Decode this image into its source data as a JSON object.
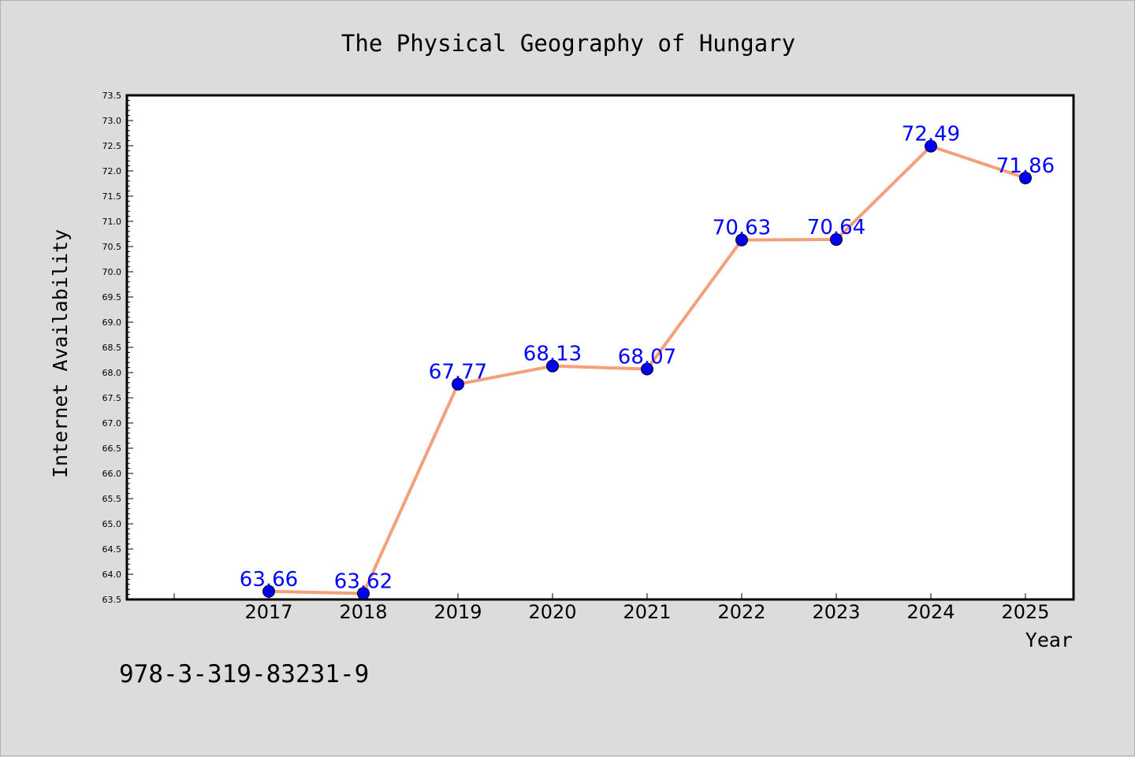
{
  "chart_data": {
    "type": "line",
    "title": "The Physical Geography of Hungary",
    "xlabel": "Year",
    "ylabel": "Internet Availability",
    "categories": [
      "2017",
      "2018",
      "2019",
      "2020",
      "2021",
      "2022",
      "2023",
      "2024",
      "2025"
    ],
    "values": [
      63.66,
      63.62,
      67.77,
      68.13,
      68.07,
      70.63,
      70.64,
      72.49,
      71.86
    ],
    "data_labels": [
      "63.66",
      "63.62",
      "67.77",
      "68.13",
      "68.07",
      "70.63",
      "70.64",
      "72.49",
      "71.86"
    ],
    "ylim": [
      63.5,
      73.5
    ],
    "yticks": [
      "63.5",
      "64.0",
      "64.5",
      "65.0",
      "65.5",
      "66.0",
      "66.5",
      "67.0",
      "67.5",
      "68.0",
      "68.5",
      "69.0",
      "69.5",
      "70.0",
      "70.5",
      "71.0",
      "71.5",
      "72.0",
      "72.5",
      "73.0",
      "73.5"
    ],
    "grid": false,
    "line_color": "#f4a07a",
    "marker_color": "#0000ee",
    "label_color": "#0000ff"
  },
  "footer": {
    "isbn": "978-3-319-83231-9"
  }
}
